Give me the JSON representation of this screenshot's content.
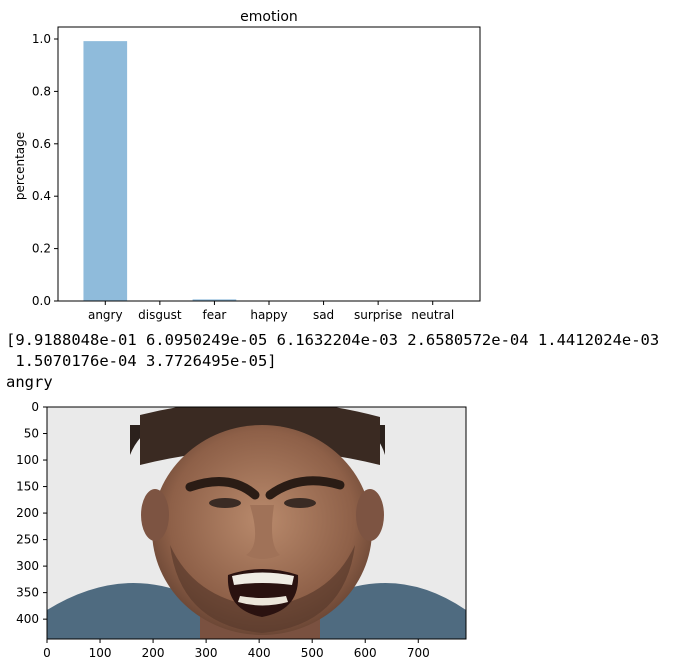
{
  "chart_data": {
    "type": "bar",
    "title": "emotion",
    "xlabel": "",
    "ylabel": "percentage",
    "categories": [
      "angry",
      "disgust",
      "fear",
      "happy",
      "sad",
      "surprise",
      "neutral"
    ],
    "values": [
      0.99188048,
      6.0950249e-05,
      0.0061632204,
      0.00026580572,
      0.0014412024,
      0.00015070176,
      3.7726495e-05
    ],
    "ylim": [
      0,
      1.0
    ],
    "yticks": [
      "0.0",
      "0.2",
      "0.4",
      "0.6",
      "0.8",
      "1.0"
    ],
    "bar_color": "#8fbbdb",
    "grid": false
  },
  "output": {
    "array_line_1": "[9.9188048e-01 6.0950249e-05 6.1632204e-03 2.6580572e-04 1.4412024e-03",
    "array_line_2": " 1.5070176e-04 3.7726495e-05]",
    "predicted_label": "angry"
  },
  "image_plot": {
    "xticks": [
      "0",
      "100",
      "200",
      "300",
      "400",
      "500",
      "600",
      "700"
    ],
    "yticks": [
      "0",
      "50",
      "100",
      "150",
      "200",
      "250",
      "300",
      "350",
      "400"
    ],
    "content": "face-photo"
  }
}
